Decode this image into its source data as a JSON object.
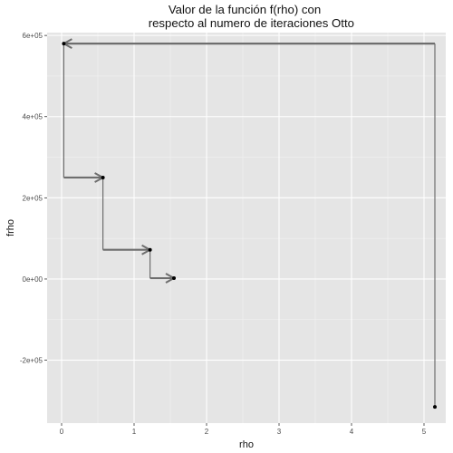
{
  "chart_data": {
    "type": "line",
    "title": "Valor de la función f(rho) con\n    respecto al numero de iteraciones Otto",
    "xlabel": "rho",
    "ylabel": "frho",
    "xlim": [
      -0.2,
      5.3
    ],
    "ylim": [
      -355000,
      607000
    ],
    "x_ticks": [
      0,
      1,
      2,
      3,
      4,
      5
    ],
    "x_tick_labels": [
      "0",
      "1",
      "2",
      "3",
      "4",
      "5"
    ],
    "y_ticks": [
      -200000,
      0,
      200000,
      400000,
      600000
    ],
    "y_tick_labels": [
      "-2e+05",
      "0e+00",
      "2e+05",
      "4e+05",
      "6e+05"
    ],
    "grid": true,
    "background": "#e5e5e5",
    "points": [
      {
        "x": 5.15,
        "y": -315000
      },
      {
        "x": 0.03,
        "y": 580000
      },
      {
        "x": 0.57,
        "y": 250000
      },
      {
        "x": 1.22,
        "y": 72000
      },
      {
        "x": 1.55,
        "y": 2000
      }
    ],
    "arrow_color": "#6e6e6e",
    "point_color": "#000000"
  }
}
